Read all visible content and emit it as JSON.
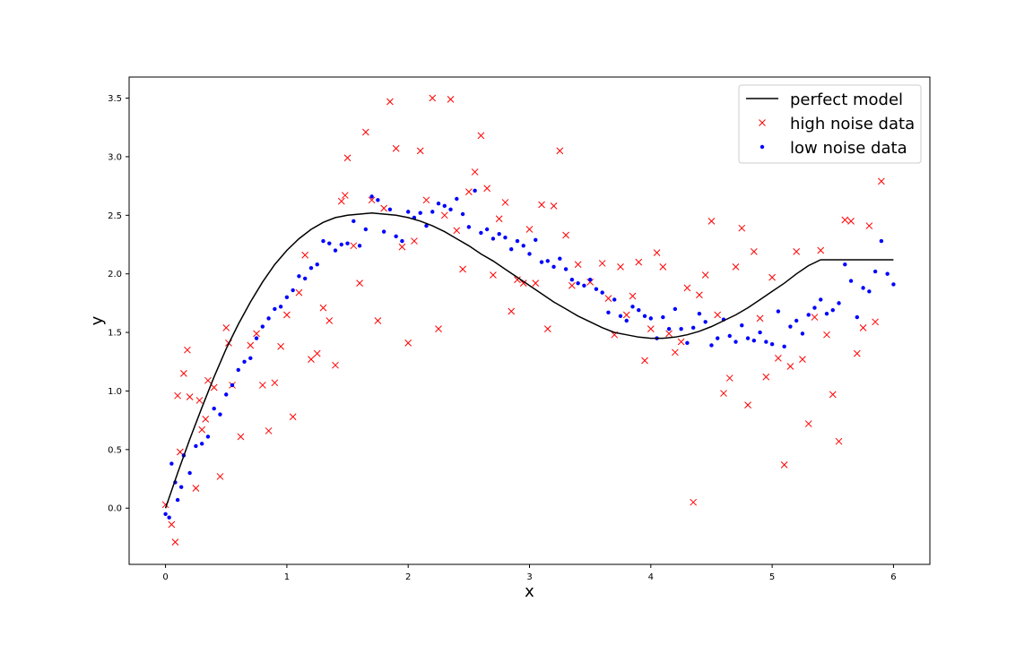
{
  "chart_data": {
    "type": "scatter",
    "title": "",
    "xlabel": "x",
    "ylabel": "y",
    "xlim": [
      -0.3,
      6.3
    ],
    "ylim": [
      -0.48,
      3.68
    ],
    "xticks": [
      "0",
      "1",
      "2",
      "3",
      "4",
      "5",
      "6"
    ],
    "yticks": [
      "0.0",
      "0.5",
      "1.0",
      "1.5",
      "2.0",
      "2.5",
      "3.0",
      "3.5"
    ],
    "grid": false,
    "legend_position": "top-right",
    "series": [
      {
        "name": "perfect model",
        "kind": "line",
        "color": "#000000",
        "x": [
          0.0,
          0.1,
          0.2,
          0.3,
          0.4,
          0.5,
          0.6,
          0.7,
          0.8,
          0.9,
          1.0,
          1.1,
          1.2,
          1.3,
          1.4,
          1.5,
          1.6,
          1.7,
          1.8,
          1.9,
          2.0,
          2.1,
          2.2,
          2.3,
          2.4,
          2.5,
          2.6,
          2.7,
          2.8,
          2.9,
          3.0,
          3.1,
          3.2,
          3.3,
          3.4,
          3.5,
          3.6,
          3.7,
          3.8,
          3.9,
          4.0,
          4.1,
          4.2,
          4.3,
          4.4,
          4.5,
          4.6,
          4.7,
          4.8,
          4.9,
          5.0,
          5.1,
          5.2,
          5.3,
          5.4,
          5.5,
          5.6,
          5.7,
          5.8,
          5.9,
          6.0
        ],
        "y": [
          0.0,
          0.3,
          0.59,
          0.86,
          1.12,
          1.36,
          1.57,
          1.76,
          1.93,
          2.08,
          2.2,
          2.3,
          2.38,
          2.44,
          2.48,
          2.5,
          2.51,
          2.52,
          2.51,
          2.5,
          2.48,
          2.45,
          2.41,
          2.36,
          2.3,
          2.24,
          2.17,
          2.11,
          2.04,
          1.97,
          1.9,
          1.83,
          1.76,
          1.7,
          1.64,
          1.59,
          1.54,
          1.5,
          1.48,
          1.46,
          1.45,
          1.45,
          1.46,
          1.48,
          1.51,
          1.55,
          1.6,
          1.65,
          1.71,
          1.78,
          1.85,
          1.92,
          2.0,
          2.07,
          2.12,
          2.12,
          2.12,
          2.12,
          2.12,
          2.12,
          2.12
        ]
      },
      {
        "name": "high noise data",
        "kind": "scatter",
        "marker": "x",
        "color": "#ff0000",
        "x": [
          0.0,
          0.05,
          0.08,
          0.1,
          0.12,
          0.15,
          0.18,
          0.2,
          0.25,
          0.28,
          0.3,
          0.33,
          0.35,
          0.4,
          0.45,
          0.5,
          0.52,
          0.55,
          0.62,
          0.7,
          0.75,
          0.8,
          0.85,
          0.9,
          0.95,
          1.0,
          1.05,
          1.1,
          1.15,
          1.2,
          1.25,
          1.3,
          1.35,
          1.4,
          1.45,
          1.48,
          1.5,
          1.55,
          1.6,
          1.65,
          1.7,
          1.75,
          1.8,
          1.85,
          1.9,
          1.95,
          2.0,
          2.05,
          2.1,
          2.15,
          2.2,
          2.25,
          2.3,
          2.35,
          2.4,
          2.45,
          2.5,
          2.55,
          2.6,
          2.65,
          2.7,
          2.75,
          2.8,
          2.85,
          2.9,
          2.95,
          3.0,
          3.05,
          3.1,
          3.15,
          3.2,
          3.25,
          3.3,
          3.35,
          3.4,
          3.5,
          3.6,
          3.65,
          3.7,
          3.75,
          3.8,
          3.85,
          3.9,
          3.95,
          4.0,
          4.05,
          4.1,
          4.15,
          4.2,
          4.25,
          4.3,
          4.35,
          4.4,
          4.45,
          4.5,
          4.55,
          4.6,
          4.65,
          4.7,
          4.75,
          4.8,
          4.85,
          4.9,
          4.95,
          5.0,
          5.05,
          5.1,
          5.15,
          5.2,
          5.25,
          5.3,
          5.35,
          5.4,
          5.45,
          5.5,
          5.55,
          5.6,
          5.65,
          5.7,
          5.75,
          5.8,
          5.85,
          5.9
        ],
        "y": [
          0.03,
          -0.14,
          -0.29,
          0.96,
          0.48,
          1.15,
          1.35,
          0.95,
          0.17,
          0.92,
          0.67,
          0.76,
          1.09,
          1.03,
          0.27,
          1.54,
          1.41,
          1.05,
          0.61,
          1.39,
          1.49,
          1.05,
          0.66,
          1.07,
          1.38,
          1.65,
          0.78,
          1.84,
          2.16,
          1.27,
          1.32,
          1.71,
          1.6,
          1.22,
          2.62,
          2.67,
          2.99,
          2.24,
          1.92,
          3.21,
          2.63,
          1.6,
          2.56,
          3.47,
          3.07,
          2.23,
          1.41,
          2.28,
          3.05,
          2.63,
          3.5,
          1.53,
          2.5,
          3.49,
          2.37,
          2.04,
          2.7,
          2.87,
          3.18,
          2.73,
          1.99,
          2.47,
          2.61,
          1.68,
          1.95,
          1.92,
          2.38,
          1.92,
          2.59,
          1.53,
          2.58,
          3.05,
          2.33,
          1.9,
          2.08,
          1.93,
          2.09,
          1.79,
          1.48,
          2.06,
          1.65,
          1.81,
          2.1,
          1.26,
          1.53,
          2.18,
          2.06,
          1.49,
          1.33,
          1.42,
          1.88,
          0.05,
          1.82,
          1.99,
          2.45,
          1.65,
          0.98,
          1.11,
          2.06,
          2.39,
          0.88,
          2.19,
          1.62,
          1.12,
          1.97,
          1.28,
          0.37,
          1.21,
          2.19,
          1.27,
          0.72,
          1.63,
          2.2,
          1.48,
          0.97,
          0.57,
          2.46,
          2.45,
          1.32,
          1.54,
          2.41,
          1.59,
          2.79
        ]
      },
      {
        "name": "low noise data",
        "kind": "scatter",
        "marker": "dot",
        "color": "#0000ff",
        "x": [
          0.0,
          0.03,
          0.05,
          0.08,
          0.1,
          0.13,
          0.15,
          0.2,
          0.25,
          0.3,
          0.35,
          0.4,
          0.45,
          0.5,
          0.55,
          0.6,
          0.65,
          0.7,
          0.75,
          0.8,
          0.85,
          0.9,
          0.95,
          1.0,
          1.05,
          1.1,
          1.15,
          1.2,
          1.25,
          1.3,
          1.35,
          1.4,
          1.45,
          1.5,
          1.55,
          1.6,
          1.65,
          1.7,
          1.75,
          1.8,
          1.85,
          1.9,
          1.95,
          2.0,
          2.05,
          2.1,
          2.15,
          2.2,
          2.25,
          2.3,
          2.35,
          2.4,
          2.45,
          2.5,
          2.55,
          2.6,
          2.65,
          2.7,
          2.75,
          2.8,
          2.85,
          2.9,
          2.95,
          3.0,
          3.05,
          3.1,
          3.15,
          3.2,
          3.25,
          3.3,
          3.35,
          3.4,
          3.45,
          3.5,
          3.55,
          3.6,
          3.65,
          3.7,
          3.75,
          3.8,
          3.85,
          3.9,
          3.95,
          4.0,
          4.05,
          4.1,
          4.15,
          4.2,
          4.25,
          4.3,
          4.35,
          4.4,
          4.45,
          4.5,
          4.55,
          4.6,
          4.65,
          4.7,
          4.75,
          4.8,
          4.85,
          4.9,
          4.95,
          5.0,
          5.05,
          5.1,
          5.15,
          5.2,
          5.25,
          5.3,
          5.35,
          5.4,
          5.45,
          5.5,
          5.55,
          5.6,
          5.65,
          5.7,
          5.75,
          5.8,
          5.85,
          5.9,
          5.95,
          6.0
        ],
        "y": [
          -0.05,
          -0.08,
          0.38,
          0.22,
          0.07,
          0.18,
          0.45,
          0.3,
          0.53,
          0.55,
          0.61,
          0.85,
          0.8,
          0.97,
          1.05,
          1.18,
          1.25,
          1.28,
          1.45,
          1.55,
          1.62,
          1.7,
          1.72,
          1.8,
          1.86,
          1.98,
          1.96,
          2.05,
          2.08,
          2.28,
          2.26,
          2.2,
          2.25,
          2.26,
          2.45,
          2.24,
          2.38,
          2.66,
          2.63,
          2.36,
          2.55,
          2.32,
          2.28,
          2.53,
          2.48,
          2.52,
          2.41,
          2.53,
          2.6,
          2.58,
          2.55,
          2.64,
          2.51,
          2.4,
          2.71,
          2.35,
          2.38,
          2.3,
          2.34,
          2.31,
          2.21,
          2.28,
          2.24,
          2.17,
          2.29,
          2.1,
          2.11,
          2.06,
          2.13,
          2.04,
          1.95,
          1.92,
          1.9,
          1.95,
          1.87,
          1.84,
          1.67,
          1.78,
          1.64,
          1.6,
          1.72,
          1.69,
          1.64,
          1.62,
          1.45,
          1.63,
          1.53,
          1.7,
          1.53,
          1.41,
          1.54,
          1.66,
          1.59,
          1.39,
          1.45,
          1.61,
          1.47,
          1.42,
          1.56,
          1.45,
          1.43,
          1.5,
          1.42,
          1.4,
          1.68,
          1.38,
          1.55,
          1.6,
          1.49,
          1.65,
          1.71,
          1.78,
          1.66,
          1.69,
          1.75,
          2.08,
          1.94,
          1.63,
          1.88,
          1.85,
          2.02,
          2.28,
          2.0,
          1.91
        ]
      }
    ]
  }
}
